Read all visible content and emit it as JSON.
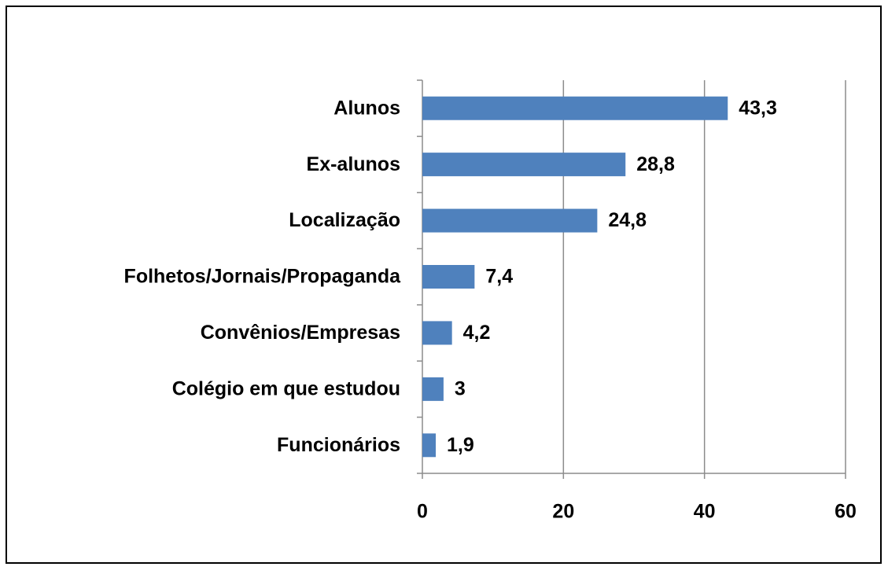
{
  "chart_data": {
    "type": "bar",
    "orientation": "horizontal",
    "categories": [
      "Alunos",
      "Ex-alunos",
      "Localização",
      "Folhetos/Jornais/Propaganda",
      "Convênios/Empresas",
      "Colégio em que estudou",
      "Funcionários"
    ],
    "values": [
      43.3,
      28.8,
      24.8,
      7.4,
      4.2,
      3,
      1.9
    ],
    "value_labels": [
      "43,3",
      "28,8",
      "24,8",
      "7,4",
      "4,2",
      "3",
      "1,9"
    ],
    "color": "#4f81bd",
    "xlim": [
      0,
      60
    ],
    "xticks": [
      0,
      20,
      40,
      60
    ],
    "grid": true
  }
}
